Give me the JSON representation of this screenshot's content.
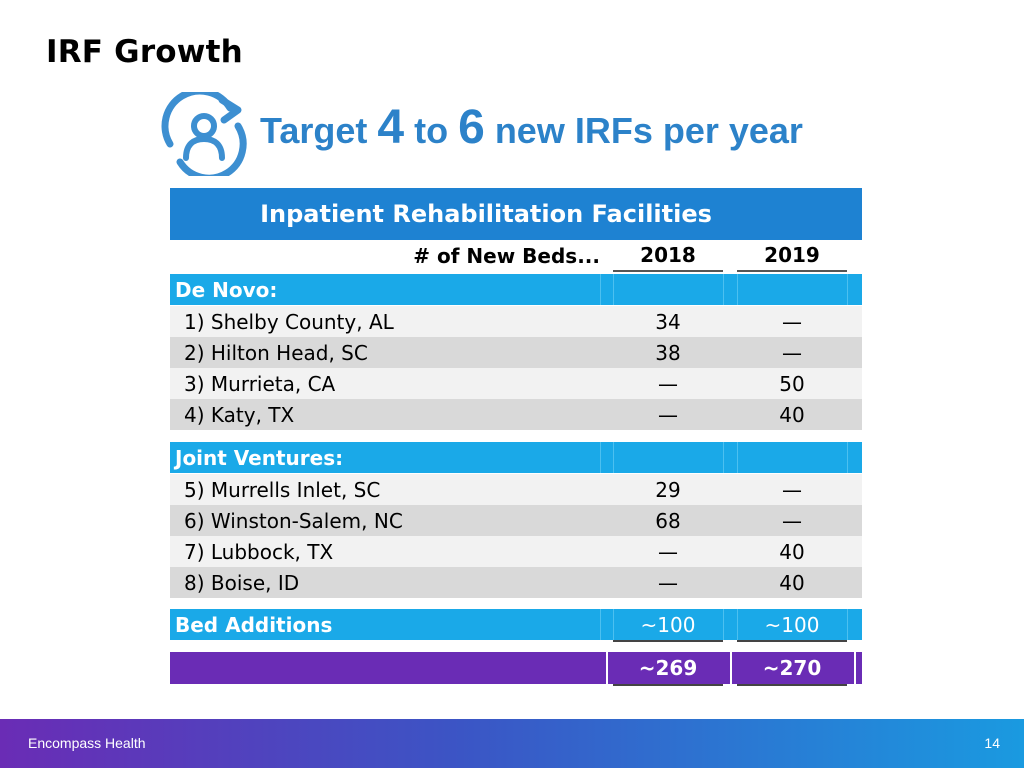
{
  "slide": {
    "title": "IRF Growth"
  },
  "headline": {
    "prefix": "Target",
    "num1": "4",
    "mid": "to",
    "num2": "6",
    "suffix": "new IRFs per year"
  },
  "table": {
    "header": "Inpatient Rehabilitation Facilities",
    "columns": {
      "label": "# of New Beds...",
      "year1": "2018",
      "year2": "2019"
    },
    "de_novo": {
      "title": "De Novo:",
      "rows": [
        {
          "name": "1) Shelby County, AL",
          "y2018": "34",
          "y2019": "—"
        },
        {
          "name": "2) Hilton Head, SC",
          "y2018": "38",
          "y2019": "—"
        },
        {
          "name": "3) Murrieta, CA",
          "y2018": "—",
          "y2019": "50"
        },
        {
          "name": "4) Katy, TX",
          "y2018": "—",
          "y2019": "40"
        }
      ]
    },
    "joint_ventures": {
      "title": "Joint Ventures:",
      "rows": [
        {
          "name": "5) Murrells Inlet, SC",
          "y2018": "29",
          "y2019": "—"
        },
        {
          "name": "6) Winston-Salem, NC",
          "y2018": "68",
          "y2019": "—"
        },
        {
          "name": "7) Lubbock, TX",
          "y2018": "—",
          "y2019": "40"
        },
        {
          "name": "8) Boise, ID",
          "y2018": "—",
          "y2019": "40"
        }
      ]
    },
    "bed_additions": {
      "label": "Bed Additions",
      "y2018": "~100",
      "y2019": "~100"
    },
    "total": {
      "y2018": "~269",
      "y2019": "~270"
    }
  },
  "footer": {
    "brand": "Encompass Health",
    "page": "14"
  },
  "colors": {
    "accent": "#1e82d2",
    "section": "#1aa9e8",
    "total": "#6a2cb5",
    "headline": "#2c82c9"
  }
}
